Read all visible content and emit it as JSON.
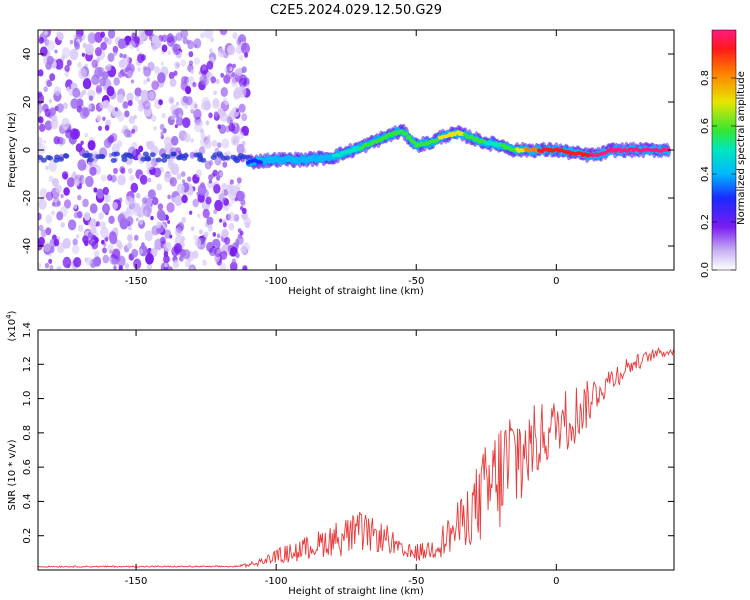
{
  "title": "C2E5.2024.029.12.50.G29",
  "chart_data": [
    {
      "type": "heatmap",
      "xlabel": "Height of straight line (km)",
      "ylabel": "Frequency (Hz)",
      "xlim": [
        -185,
        42
      ],
      "ylim": [
        -50,
        50
      ],
      "xticks": [
        -150,
        -100,
        -50,
        0
      ],
      "yticks": [
        -40,
        -20,
        0,
        20,
        40
      ],
      "colorbar": {
        "label": "Normalized spectral amplitude",
        "range": [
          0,
          1
        ],
        "ticks": [
          0.0,
          0.2,
          0.4,
          0.6,
          0.8
        ]
      },
      "ridge": {
        "x": [
          -110,
          -100,
          -90,
          -80,
          -70,
          -60,
          -55,
          -50,
          -45,
          -40,
          -35,
          -30,
          -25,
          -20,
          -15,
          -10,
          -5,
          0,
          5,
          10,
          15,
          20,
          25,
          30,
          35,
          40
        ],
        "freq": [
          -5,
          -4,
          -4,
          -3,
          1,
          6,
          8,
          2,
          3,
          6,
          7,
          5,
          3,
          2,
          0,
          0,
          0,
          0,
          -1,
          -2,
          -2,
          0,
          0,
          0,
          0,
          0
        ],
        "amplitude": [
          0.25,
          0.35,
          0.4,
          0.4,
          0.5,
          0.55,
          0.5,
          0.55,
          0.55,
          0.6,
          0.6,
          0.55,
          0.5,
          0.5,
          0.55,
          0.75,
          0.85,
          0.9,
          0.9,
          0.9,
          0.95,
          0.95,
          0.95,
          0.95,
          0.95,
          0.95
        ]
      },
      "noise_region_x": [
        -185,
        -110
      ]
    },
    {
      "type": "line",
      "xlabel": "Height of straight line (km)",
      "ylabel": "SNR (10 * v/v)",
      "scale_label": "(x10",
      "scale_exponent": "4",
      "scale_suffix": ")",
      "xlim": [
        -185,
        42
      ],
      "ylim": [
        0,
        1.4
      ],
      "xticks": [
        -150,
        -100,
        -50,
        0
      ],
      "yticks": [
        0.2,
        0.4,
        0.6,
        0.8,
        1.0,
        1.2,
        1.4
      ],
      "series": [
        {
          "color": "#e83a3a",
          "x": [
            -185,
            -170,
            -150,
            -130,
            -115,
            -110,
            -105,
            -100,
            -95,
            -90,
            -85,
            -80,
            -75,
            -70,
            -65,
            -60,
            -55,
            -50,
            -45,
            -40,
            -35,
            -30,
            -25,
            -20,
            -15,
            -10,
            -5,
            0,
            5,
            10,
            15,
            20,
            25,
            30,
            35,
            42
          ],
          "y": [
            0.02,
            0.02,
            0.02,
            0.02,
            0.02,
            0.03,
            0.05,
            0.08,
            0.1,
            0.12,
            0.15,
            0.18,
            0.2,
            0.22,
            0.2,
            0.18,
            0.1,
            0.1,
            0.12,
            0.18,
            0.25,
            0.35,
            0.45,
            0.55,
            0.65,
            0.7,
            0.78,
            0.85,
            0.9,
            0.95,
            1.05,
            1.12,
            1.18,
            1.22,
            1.26,
            1.28
          ],
          "noise": [
            0,
            0,
            0,
            0,
            0,
            0.01,
            0.02,
            0.04,
            0.06,
            0.07,
            0.08,
            0.1,
            0.12,
            0.12,
            0.1,
            0.08,
            0.05,
            0.05,
            0.06,
            0.1,
            0.15,
            0.2,
            0.3,
            0.35,
            0.4,
            0.25,
            0.2,
            0.15,
            0.2,
            0.15,
            0.1,
            0.08,
            0.06,
            0.04,
            0.03,
            0.02
          ]
        }
      ]
    }
  ]
}
